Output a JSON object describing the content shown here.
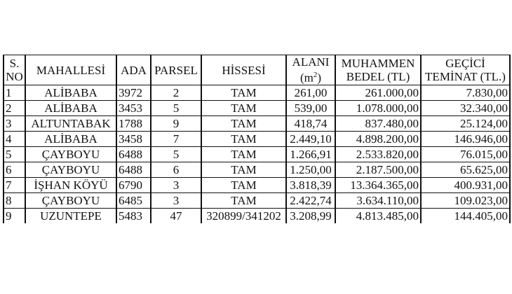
{
  "table": {
    "headers": {
      "sno": [
        "S.",
        "NO"
      ],
      "mahallesi": "MAHALLESİ",
      "ada": "ADA",
      "parsel": "PARSEL",
      "hissesi": "HİSSESİ",
      "alani": [
        "ALANI",
        "(m",
        "2",
        ")"
      ],
      "bedel": [
        "MUHAMMEN",
        "BEDEL (TL)"
      ],
      "teminat": [
        "GEÇİCİ",
        "TEMİNAT (TL.)"
      ]
    },
    "rows": [
      [
        "1",
        "ALİBABA",
        "3972",
        "2",
        "TAM",
        "261,00",
        "261.000,00",
        "7.830,00"
      ],
      [
        "2",
        "ALİBABA",
        "3453",
        "5",
        "TAM",
        "539,00",
        "1.078.000,00",
        "32.340,00"
      ],
      [
        "3",
        "ALTUNTABAK",
        "1788",
        "9",
        "TAM",
        "418,74",
        "837.480,00",
        "25.124,00"
      ],
      [
        "4",
        "ALİBABA",
        "3458",
        "7",
        "TAM",
        "2.449,10",
        "4.898.200,00",
        "146.946,00"
      ],
      [
        "5",
        "ÇAYBOYU",
        "6488",
        "5",
        "TAM",
        "1.266,91",
        "2.533.820,00",
        "76.015,00"
      ],
      [
        "6",
        "ÇAYBOYU",
        "6488",
        "6",
        "TAM",
        "1.250,00",
        "2.187.500,00",
        "65.625,00"
      ],
      [
        "7",
        "İŞHAN KÖYÜ",
        "6790",
        "3",
        "TAM",
        "3.818,39",
        "13.364.365,00",
        "400.931,00"
      ],
      [
        "8",
        "ÇAYBOYU",
        "6485",
        "3",
        "TAM",
        "2.422,74",
        "3.634.110,00",
        "109.023,00"
      ],
      [
        "9",
        "UZUNTEPE",
        "5483",
        "47",
        "320899/341202",
        "3.208,99",
        "4.813.485,00",
        "144.405,00"
      ]
    ]
  }
}
